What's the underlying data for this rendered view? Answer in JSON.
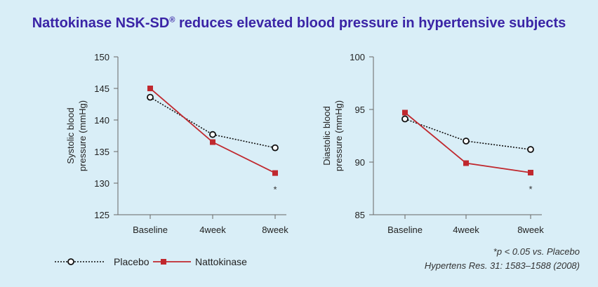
{
  "title": {
    "main": "Nattokinase NSK-SD",
    "mark": "®",
    "rest": " reduces elevated blood pressure in hypertensive subjects",
    "color": "#3a24a6"
  },
  "footnotes": {
    "significance": "*p < 0.05 vs. Placebo",
    "reference": "Hypertens Res. 31: 1583–1588 (2008)"
  },
  "legend": {
    "placebo": "Placebo",
    "nattokinase": "Nattokinase"
  },
  "colors": {
    "placebo": "#111111",
    "nattokinase": "#c0282e",
    "background": "#d9eef7"
  },
  "chart_data": [
    {
      "type": "line",
      "title": "",
      "xlabel": "",
      "ylabel": [
        "Systolic blood",
        "pressure (mmHg)"
      ],
      "categories": [
        "Baseline",
        "4week",
        "8week"
      ],
      "ylim": [
        125,
        150
      ],
      "yticks": [
        125,
        130,
        135,
        140,
        145,
        150
      ],
      "series": [
        {
          "name": "Placebo",
          "values": [
            143.6,
            137.7,
            135.6
          ]
        },
        {
          "name": "Nattokinase",
          "values": [
            145.0,
            136.5,
            131.6
          ]
        }
      ],
      "annotations": [
        {
          "category": "8week",
          "text": "*"
        }
      ]
    },
    {
      "type": "line",
      "title": "",
      "xlabel": "",
      "ylabel": [
        "Diastolic blood",
        "pressure (mmHg)"
      ],
      "categories": [
        "Baseline",
        "4week",
        "8week"
      ],
      "ylim": [
        85,
        100
      ],
      "yticks": [
        85,
        90,
        95,
        100
      ],
      "series": [
        {
          "name": "Placebo",
          "values": [
            94.1,
            92.0,
            91.2
          ]
        },
        {
          "name": "Nattokinase",
          "values": [
            94.7,
            89.9,
            89.0
          ]
        }
      ],
      "annotations": [
        {
          "category": "8week",
          "text": "*"
        }
      ]
    }
  ]
}
